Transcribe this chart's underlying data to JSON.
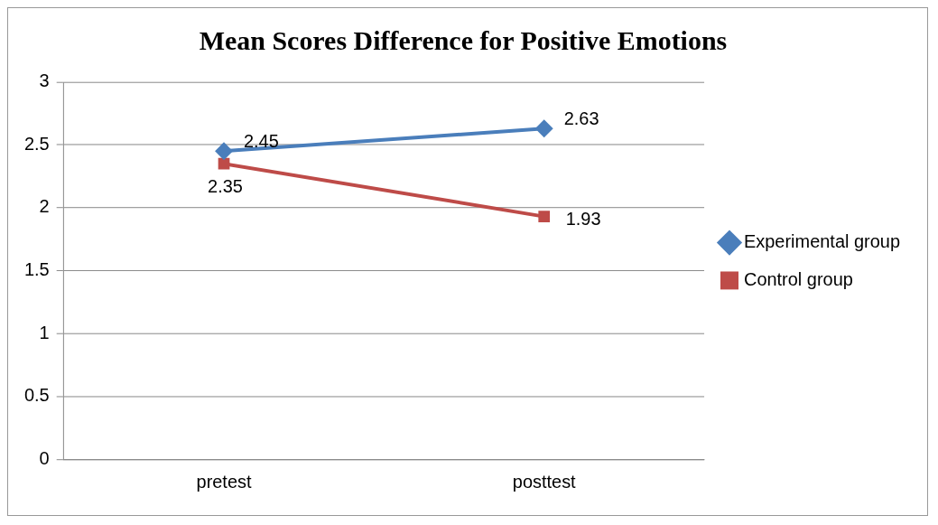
{
  "chart_data": {
    "type": "line",
    "title": "Mean Scores Difference for Positive Emotions",
    "categories": [
      "pretest",
      "posttest"
    ],
    "series": [
      {
        "name": "Experimental group",
        "color": "#4a7ebb",
        "values": [
          2.45,
          2.63
        ],
        "marker": "diamond"
      },
      {
        "name": "Control group",
        "color": "#be4b48",
        "values": [
          2.35,
          1.93
        ],
        "marker": "square"
      }
    ],
    "ylim": [
      0,
      3
    ],
    "yticks": [
      0,
      0.5,
      1,
      1.5,
      2,
      2.5,
      3
    ],
    "grid": "y",
    "legend": "right",
    "data_labels": true
  }
}
